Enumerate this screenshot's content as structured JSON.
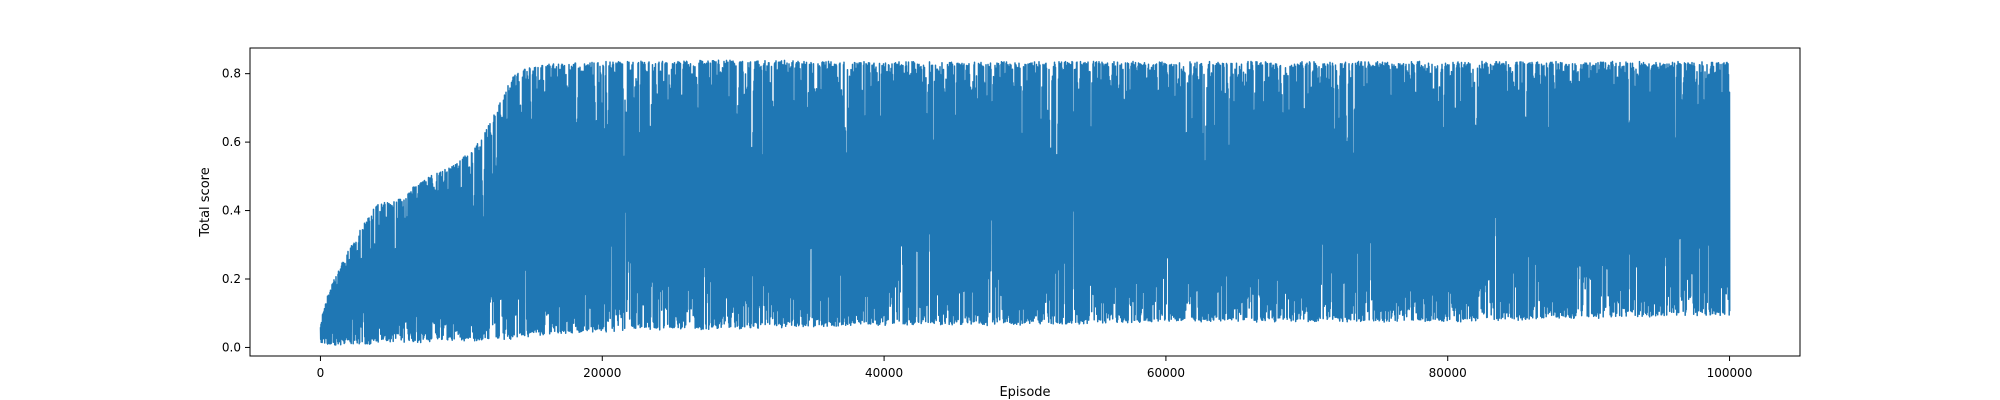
{
  "chart_data": {
    "type": "line",
    "title": "",
    "xlabel": "Episode",
    "ylabel": "Total score",
    "xlim": [
      -5000,
      105000
    ],
    "ylim": [
      -0.025,
      0.875
    ],
    "xticks": [
      0,
      20000,
      40000,
      60000,
      80000,
      100000
    ],
    "xtick_labels": [
      "0",
      "20000",
      "40000",
      "60000",
      "80000",
      "100000"
    ],
    "yticks": [
      0.0,
      0.2,
      0.4,
      0.6,
      0.8
    ],
    "ytick_labels": [
      "0.0",
      "0.2",
      "0.4",
      "0.6",
      "0.8"
    ],
    "grid": false,
    "legend": "none",
    "series": [
      {
        "color": "#1f77b4",
        "envelope": {
          "x": [
            0,
            500,
            1000,
            2000,
            3000,
            4000,
            5000,
            6000,
            7000,
            8000,
            9000,
            10000,
            11000,
            12000,
            12800,
            13500,
            14000,
            14500,
            15000,
            16000,
            17000,
            20000,
            30000,
            40000,
            50000,
            60000,
            70000,
            80000,
            90000,
            100000
          ],
          "upper": [
            0.07,
            0.15,
            0.2,
            0.28,
            0.35,
            0.42,
            0.42,
            0.44,
            0.48,
            0.5,
            0.52,
            0.55,
            0.58,
            0.65,
            0.72,
            0.78,
            0.8,
            0.81,
            0.82,
            0.825,
            0.825,
            0.83,
            0.835,
            0.83,
            0.83,
            0.83,
            0.83,
            0.83,
            0.83,
            0.83
          ],
          "lower": [
            0.01,
            0.01,
            0.01,
            0.015,
            0.015,
            0.015,
            0.02,
            0.02,
            0.02,
            0.02,
            0.025,
            0.025,
            0.025,
            0.03,
            0.03,
            0.03,
            0.035,
            0.035,
            0.04,
            0.04,
            0.045,
            0.05,
            0.06,
            0.07,
            0.07,
            0.08,
            0.08,
            0.08,
            0.09,
            0.1
          ]
        }
      }
    ]
  }
}
